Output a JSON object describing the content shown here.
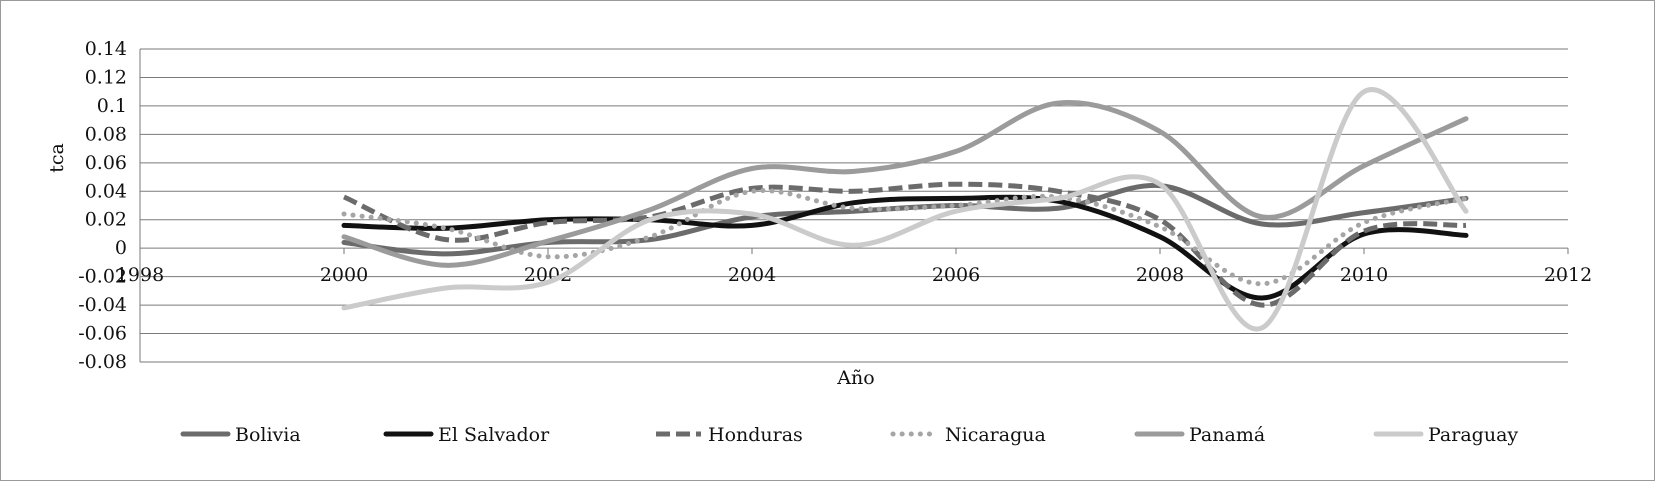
{
  "chart_data": {
    "type": "line",
    "title": "",
    "xlabel": "Año",
    "ylabel": "tca",
    "xlim": [
      1998,
      2012
    ],
    "ylim": [
      -0.08,
      0.14
    ],
    "x_ticks": [
      "1998",
      "2000",
      "2002",
      "2004",
      "2006",
      "2008",
      "2010",
      "2012"
    ],
    "y_ticks": [
      "0.14",
      "0.12",
      "0.1",
      "0.08",
      "0.06",
      "0.04",
      "0.02",
      "0",
      "-0.02",
      "-0.04",
      "-0.06",
      "-0.08"
    ],
    "grid": "horizontal",
    "legend_position": "bottom",
    "x": [
      2000,
      2001,
      2002,
      2003,
      2004,
      2005,
      2006,
      2007,
      2008,
      2009,
      2010,
      2011
    ],
    "series": [
      {
        "name": "Bolivia",
        "color": "#6b6b6b",
        "style": "solid",
        "values": [
          0.004,
          -0.004,
          0.004,
          0.006,
          0.022,
          0.026,
          0.03,
          0.028,
          0.044,
          0.017,
          0.025,
          0.035
        ]
      },
      {
        "name": "El Salvador",
        "color": "#111111",
        "style": "solid",
        "values": [
          0.016,
          0.014,
          0.02,
          0.02,
          0.016,
          0.032,
          0.035,
          0.033,
          0.008,
          -0.035,
          0.01,
          0.009
        ]
      },
      {
        "name": "Honduras",
        "color": "#6b6b6b",
        "style": "dashed",
        "values": [
          0.036,
          0.006,
          0.018,
          0.022,
          0.042,
          0.04,
          0.045,
          0.04,
          0.02,
          -0.04,
          0.012,
          0.016
        ]
      },
      {
        "name": "Nicaragua",
        "color": "#a5a5a5",
        "style": "dotted",
        "values": [
          0.024,
          0.014,
          -0.006,
          0.008,
          0.04,
          0.028,
          0.03,
          0.036,
          0.015,
          -0.025,
          0.018,
          0.035
        ]
      },
      {
        "name": "Panamá",
        "color": "#9b9b9b",
        "style": "solid",
        "values": [
          0.008,
          -0.012,
          0.005,
          0.027,
          0.056,
          0.054,
          0.068,
          0.102,
          0.082,
          0.022,
          0.058,
          0.091
        ]
      },
      {
        "name": "Paraguay",
        "color": "#cbcbcb",
        "style": "solid",
        "values": [
          -0.042,
          -0.028,
          -0.024,
          0.02,
          0.024,
          0.002,
          0.026,
          0.035,
          0.045,
          -0.056,
          0.11,
          0.026
        ]
      }
    ]
  }
}
